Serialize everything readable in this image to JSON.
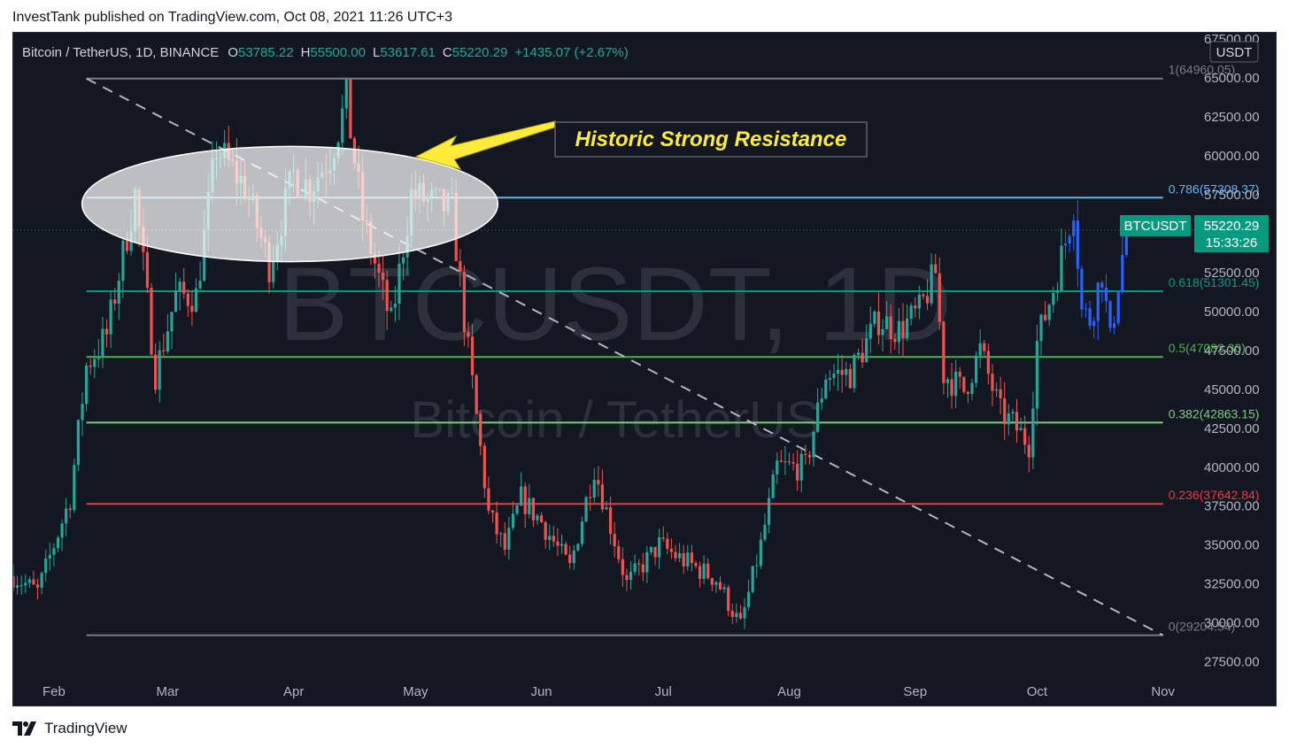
{
  "header": {
    "published": "InvestTank published on TradingView.com, Oct 08, 2021 11:26 UTC+3"
  },
  "legend": {
    "symbol": "Bitcoin / TetherUS, 1D, BINANCE",
    "o_label": "O",
    "o": "53785.22",
    "h_label": "H",
    "h": "55500.00",
    "l_label": "L",
    "l": "53617.61",
    "c_label": "C",
    "c": "55220.29",
    "change": "+1435.07 (+2.67%)"
  },
  "watermark": {
    "main": "BTCUSDT, 1D",
    "sub": "Bitcoin / TetherUS"
  },
  "annotation": {
    "text": "Historic Strong Resistance"
  },
  "price_axis": {
    "currency_badge": "USDT",
    "current_label": "BTCUSDT",
    "current_price": "55220.29",
    "countdown": "15:33:26"
  },
  "footer": {
    "brand": "TradingView",
    "logo_icon": "tradingview-logo-icon"
  },
  "colors": {
    "background": "#131722",
    "up": "#26a69a",
    "down": "#ef5350",
    "recent": "#2962ff",
    "fib_1": "#787b86",
    "fib_0786": "#64b5f6",
    "fib_0618": "#089981",
    "fib_05": "#4caf50",
    "fib_0382": "#81c784",
    "fib_0236": "#f23645",
    "fib_0": "#787b86",
    "annotation": "#ffeb3b"
  },
  "chart_data": {
    "type": "candlestick",
    "symbol": "BTCUSDT",
    "interval": "1D",
    "x_ticks": [
      "Feb",
      "Mar",
      "Apr",
      "May",
      "Jun",
      "Jul",
      "Aug",
      "Sep",
      "Oct",
      "Nov"
    ],
    "y_ticks": [
      "67500.00",
      "65000.00",
      "62500.00",
      "60000.00",
      "57500.00",
      "52500.00",
      "50000.00",
      "47500.00",
      "45000.00",
      "42500.00",
      "40000.00",
      "37500.00",
      "35000.00",
      "32500.00",
      "30000.00",
      "27500.00"
    ],
    "ylim": [
      26400,
      67900
    ],
    "x_range": [
      "2021-01-22",
      "2021-11-10"
    ],
    "fibonacci": [
      {
        "level": "1",
        "price": 64960.05,
        "label": "1(64960.05)"
      },
      {
        "level": "0.786",
        "price": 57308.37,
        "label": "0.786(57308.37)"
      },
      {
        "level": "0.618",
        "price": 51301.45,
        "label": "0.618(51301.45)"
      },
      {
        "level": "0.5",
        "price": 47082.3,
        "label": "0.5(47082.30)"
      },
      {
        "level": "0.382",
        "price": 42863.15,
        "label": "0.382(42863.15)"
      },
      {
        "level": "0.236",
        "price": 37642.84,
        "label": "0.236(37642.84)"
      },
      {
        "level": "0",
        "price": 29204.54,
        "label": "0(29204.54)"
      }
    ],
    "trend_line": {
      "start": [
        "2021-02-09",
        64960
      ],
      "end": [
        "2021-11-01",
        29204
      ]
    },
    "resistance_zone": {
      "from": "2021-02-09",
      "to": "2021-05-18",
      "low": 53200,
      "high": 60600
    },
    "last_close": 55220.29,
    "ohlc_keypoints": [
      [
        "2021-01-22",
        33000
      ],
      [
        "2021-01-28",
        32000
      ],
      [
        "2021-02-05",
        38000
      ],
      [
        "2021-02-09",
        46500
      ],
      [
        "2021-02-14",
        48500
      ],
      [
        "2021-02-21",
        57500
      ],
      [
        "2021-02-26",
        46000
      ],
      [
        "2021-03-03",
        51000
      ],
      [
        "2021-03-08",
        51000
      ],
      [
        "2021-03-13",
        60500
      ],
      [
        "2021-03-20",
        58000
      ],
      [
        "2021-03-26",
        53000
      ],
      [
        "2021-04-01",
        58800
      ],
      [
        "2021-04-05",
        58000
      ],
      [
        "2021-04-10",
        60000
      ],
      [
        "2021-04-14",
        63500
      ],
      [
        "2021-04-18",
        56000
      ],
      [
        "2021-04-25",
        49200
      ],
      [
        "2021-04-30",
        57500
      ],
      [
        "2021-05-05",
        57000
      ],
      [
        "2021-05-10",
        56500
      ],
      [
        "2021-05-13",
        49500
      ],
      [
        "2021-05-19",
        37000
      ],
      [
        "2021-05-23",
        34700
      ],
      [
        "2021-05-27",
        38000
      ],
      [
        "2021-06-01",
        36500
      ],
      [
        "2021-06-08",
        33500
      ],
      [
        "2021-06-14",
        40000
      ],
      [
        "2021-06-22",
        32500
      ],
      [
        "2021-06-30",
        35000
      ],
      [
        "2021-07-06",
        34000
      ],
      [
        "2021-07-14",
        32800
      ],
      [
        "2021-07-20",
        29800
      ],
      [
        "2021-07-25",
        35000
      ],
      [
        "2021-07-29",
        40000
      ],
      [
        "2021-08-05",
        40000
      ],
      [
        "2021-08-10",
        46000
      ],
      [
        "2021-08-16",
        46000
      ],
      [
        "2021-08-23",
        49500
      ],
      [
        "2021-08-28",
        48800
      ],
      [
        "2021-09-02",
        50000
      ],
      [
        "2021-09-06",
        52500
      ],
      [
        "2021-09-08",
        46000
      ],
      [
        "2021-09-13",
        44900
      ],
      [
        "2021-09-17",
        47500
      ],
      [
        "2021-09-22",
        43500
      ],
      [
        "2021-09-25",
        42800
      ],
      [
        "2021-09-29",
        41500
      ],
      [
        "2021-10-01",
        48000
      ],
      [
        "2021-10-05",
        51500
      ],
      [
        "2021-10-08",
        54500
      ],
      [
        "2021-10-10",
        57000
      ],
      [
        "2021-10-12",
        50000
      ],
      [
        "2021-10-14",
        49500
      ],
      [
        "2021-10-17",
        52500
      ],
      [
        "2021-10-19",
        48000
      ],
      [
        "2021-10-21",
        52000
      ],
      [
        "2021-10-23",
        55220
      ]
    ]
  }
}
